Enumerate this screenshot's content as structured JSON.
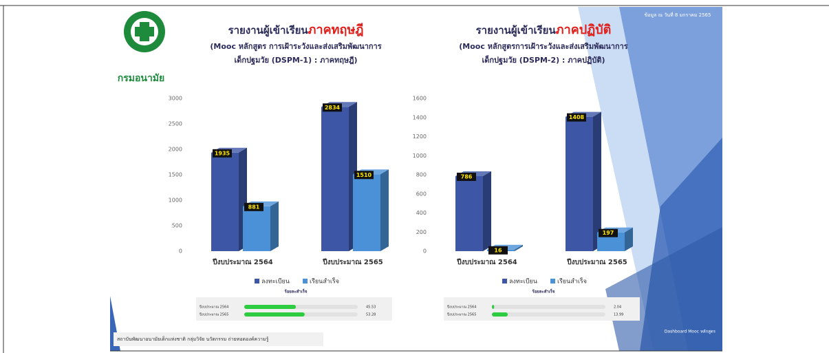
{
  "chart_data": [
    {
      "type": "bar3d",
      "title": [
        "รายงานผู้เข้าเรียน",
        "ภาคทฤษฎี"
      ],
      "subtitle": [
        "(Mooc หลักสูตร การเฝ้าระวังและส่งเสริมพัฒนาการ",
        "เด็กปฐมวัย (DSPM-1) : ภาคทฤษฎี)"
      ],
      "categories": [
        "ปีงบประมาณ 2564",
        "ปีงบประมาณ 2565"
      ],
      "series": [
        {
          "name": "ลงทะเบียน",
          "color": "#3d57a6",
          "values": [
            1935,
            2834
          ]
        },
        {
          "name": "เรียนสำเร็จ",
          "color": "#4a91d8",
          "values": [
            881,
            1510
          ]
        }
      ],
      "ylim": [
        0,
        3000
      ],
      "yticks": [
        0,
        500,
        1000,
        1500,
        2000,
        2500,
        3000
      ],
      "grid": false
    },
    {
      "type": "bar3d",
      "title": [
        "รายงานผู้เข้าเรียน",
        "ภาคปฏิบัติ"
      ],
      "subtitle": [
        "(Mooc หลักสูตรการเฝ้าระวังและส่งเสริมพัฒนาการ",
        "เด็กปฐมวัย (DSPM-2) : ภาคปฏิบัติ)"
      ],
      "categories": [
        "ปีงบประมาณ 2564",
        "ปีงบประมาณ 2565"
      ],
      "series": [
        {
          "name": "ลงทะเบียน",
          "color": "#3d57a6",
          "values": [
            786,
            1408
          ]
        },
        {
          "name": "เรียนสำเร็จ",
          "color": "#4a91d8",
          "values": [
            16,
            197
          ]
        }
      ],
      "ylim": [
        0,
        1600
      ],
      "yticks": [
        0,
        200,
        400,
        600,
        800,
        1000,
        1200,
        1400,
        1600
      ],
      "grid": false
    }
  ],
  "completion": [
    {
      "caption": "ร้อยละสำเร็จ",
      "xlim": [
        0,
        100
      ],
      "color": "#2ecc40",
      "rows": [
        {
          "label": "ปีงบประมาณ 2564",
          "value": 45.53
        },
        {
          "label": "ปีงบประมาณ 2565",
          "value": 53.28
        }
      ]
    },
    {
      "caption": "ร้อยละสำเร็จ",
      "xlim": [
        0,
        100
      ],
      "color": "#2ecc40",
      "rows": [
        {
          "label": "ปีงบประมาณ 2564",
          "value": 2.04
        },
        {
          "label": "ปีงบประมาณ 2565",
          "value": 13.99
        }
      ]
    }
  ],
  "slide": {
    "logo_text": "กรมอนามัย",
    "date": "ข้อมูล ณ วันที่ 8 มกราคม 2565",
    "footer": "สถาบันพัฒนาอนามัยเด็กแห่งชาติ กลุ่มวิจัย นวัตกรรม ถ่ายทอดองค์ความรู้",
    "credit": "Dashboard Mooc หลักสูตร"
  }
}
